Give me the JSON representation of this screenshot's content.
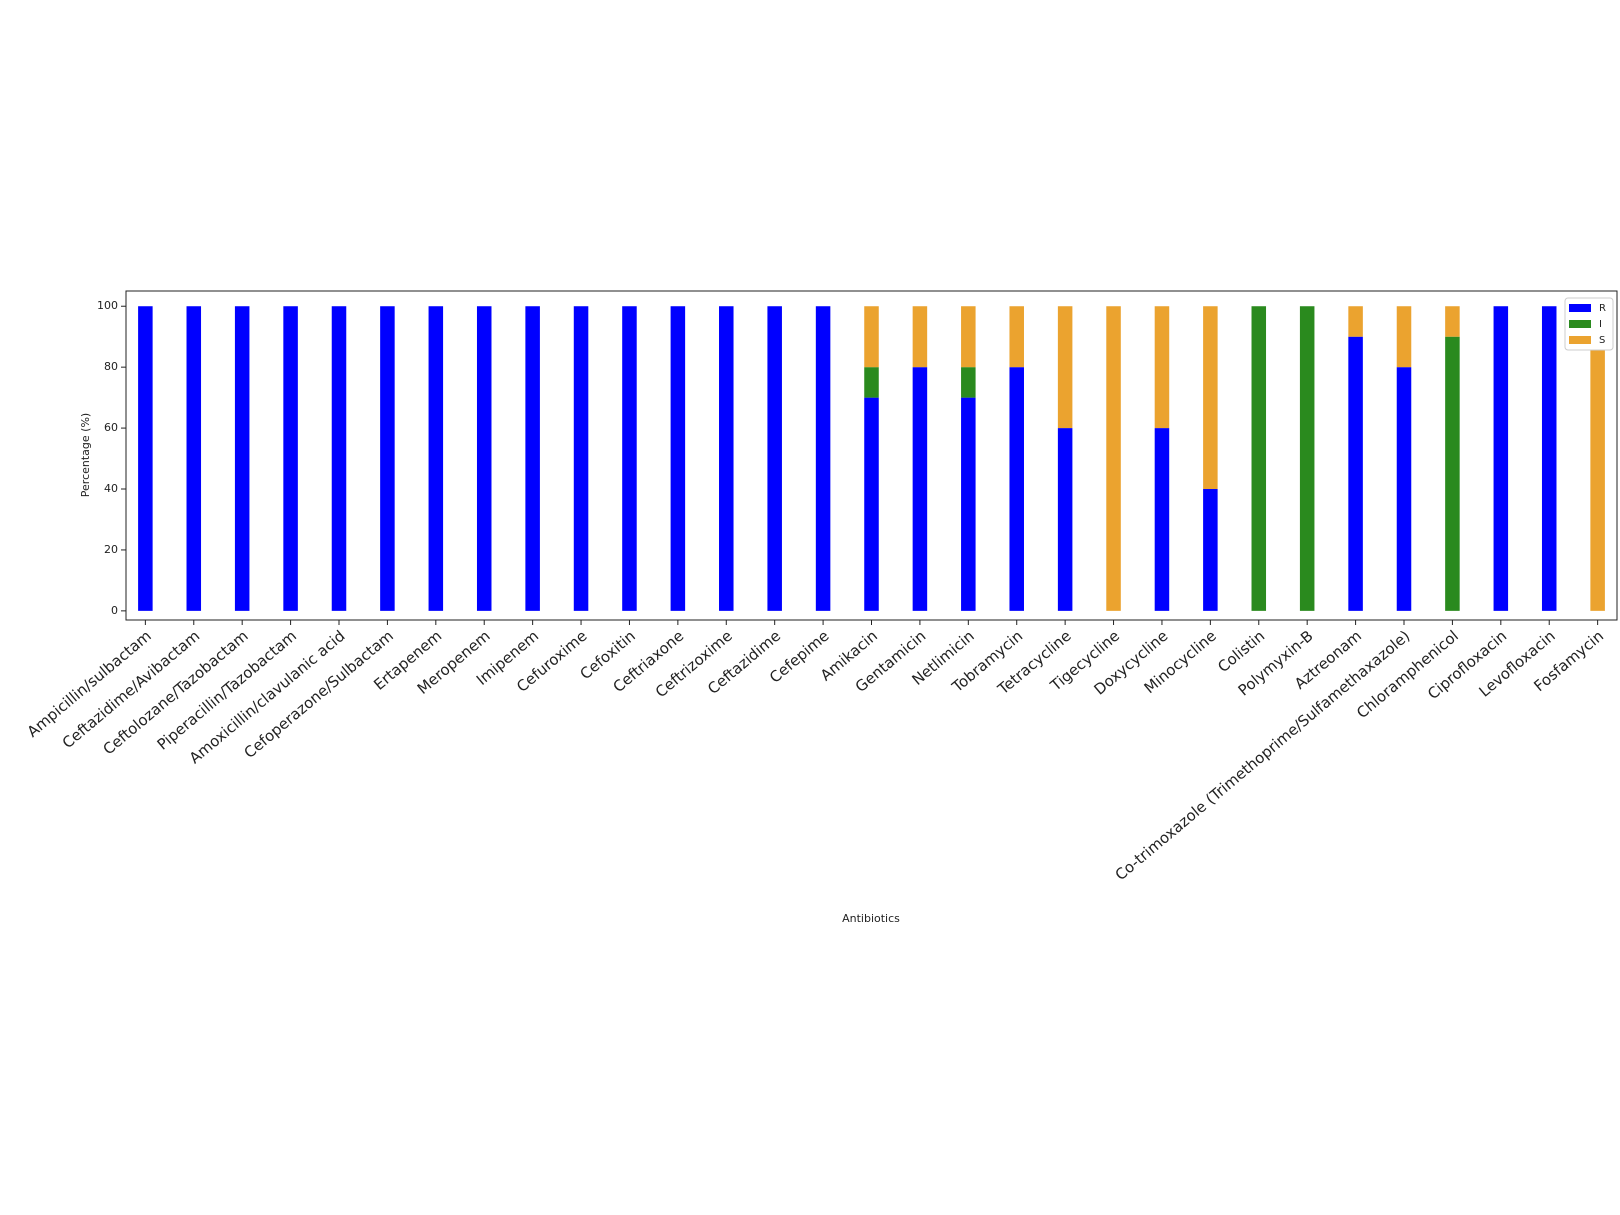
{
  "chart_data": {
    "type": "stacked_bar",
    "xlabel": "Antibiotics",
    "ylabel": "Percentage (%)",
    "categories": [
      "Ampicillin/sulbactam",
      "Ceftazidime/Avibactam",
      "Ceftolozane/Tazobactam",
      "Piperacillin/Tazobactam",
      "Amoxicillin/clavulanic acid",
      "Cefoperazone/Sulbactam",
      "Ertapenem",
      "Meropenem",
      "Imipenem",
      "Cefuroxime",
      "Cefoxitin",
      "Ceftriaxone",
      "Ceftrizoxime",
      "Ceftazidime",
      "Cefepime",
      "Amikacin",
      "Gentamicin",
      "Netlimicin",
      "Tobramycin",
      "Tetracycline",
      "Tigecycline",
      "Doxycycline",
      "Minocycline",
      "Colistin",
      "Polymyxin-B",
      "Aztreonam",
      "Co-trimoxazole (Trimethoprime/Sulfamethaxazole)",
      "Chloramphenicol",
      "Ciprofloxacin",
      "Levofloxacin",
      "Fosfamycin"
    ],
    "series": [
      {
        "name": "R",
        "color": "#0000ff",
        "values": [
          100,
          100,
          100,
          100,
          100,
          100,
          100,
          100,
          100,
          100,
          100,
          100,
          100,
          100,
          100,
          70,
          80,
          70,
          80,
          60,
          0,
          60,
          40,
          0,
          0,
          90,
          80,
          0,
          100,
          100,
          0
        ]
      },
      {
        "name": "I",
        "color": "#2a8a1e",
        "values": [
          0,
          0,
          0,
          0,
          0,
          0,
          0,
          0,
          0,
          0,
          0,
          0,
          0,
          0,
          0,
          10,
          0,
          10,
          0,
          0,
          0,
          0,
          0,
          100,
          100,
          0,
          0,
          90,
          0,
          0,
          0
        ]
      },
      {
        "name": "S",
        "color": "#eba32f",
        "values": [
          0,
          0,
          0,
          0,
          0,
          0,
          0,
          0,
          0,
          0,
          0,
          0,
          0,
          0,
          0,
          20,
          20,
          20,
          20,
          40,
          100,
          40,
          60,
          0,
          0,
          10,
          20,
          10,
          0,
          0,
          100
        ]
      }
    ],
    "ylim": [
      -3,
      105
    ],
    "yticks": [
      0,
      20,
      40,
      60,
      80,
      100
    ],
    "legend": "upper right"
  }
}
